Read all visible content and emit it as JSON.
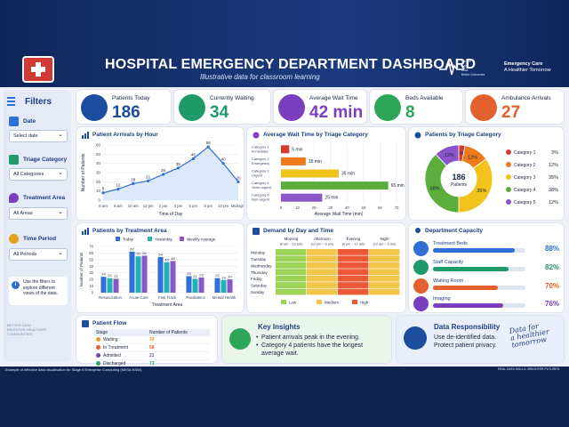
{
  "header": {
    "title": "HOSPITAL EMERGENCY DEPARTMENT DASHBOARD",
    "subtitle": "Illustrative data for classroom learning",
    "small_lines": [
      "People",
      "Care",
      "Data",
      "Better Outcomes"
    ],
    "right_title": "Emergency Care",
    "right_sub": "A Healthier Tomorrow"
  },
  "filters": {
    "title": "Filters",
    "date_label": "Date",
    "date_value": "Select date",
    "triage_label": "Triage Category",
    "triage_value": "All Categories",
    "area_label": "Treatment Area",
    "area_value": "All Areas",
    "period_label": "Time Period",
    "period_value": "All Periods",
    "note": "Use the filters to explore different views of the data.",
    "bottom_text": "BETTER DATA BRIGHTER HEALTHIER COMMUNITIES"
  },
  "kpis": [
    {
      "label": "Patients Today",
      "value": "186",
      "color": "#1d4d9e"
    },
    {
      "label": "Currently Waiting",
      "value": "34",
      "color": "#1f9a6b"
    },
    {
      "label": "Average Wait Time",
      "value": "42 min",
      "color": "#7a3fbf"
    },
    {
      "label": "Beds Available",
      "value": "8",
      "color": "#2da65a"
    },
    {
      "label": "Ambulance Arrivals",
      "value": "27",
      "color": "#e2612c"
    }
  ],
  "arrivals": {
    "title": "Patient Arrivals by Hour",
    "ylabel": "Number of Patients",
    "xlabel": "Time of Day",
    "yticks": [
      "0",
      "10",
      "20",
      "30",
      "40",
      "50",
      "60"
    ]
  },
  "wait": {
    "title": "Average Wait Time by Triage Category",
    "xlabel": "Average Wait Time (min)",
    "xticks": [
      "0",
      "10",
      "20",
      "30",
      "40",
      "50",
      "60",
      "70"
    ]
  },
  "triage_pie": {
    "title": "Patients by Triage Category",
    "center_value": "186",
    "center_label": "Patients"
  },
  "treatment": {
    "title": "Patients by Treatment Area",
    "ylabel": "Number of Patients",
    "xlabel": "Treatment Area",
    "yticks": [
      "0",
      "10",
      "20",
      "30",
      "40",
      "50",
      "60",
      "70"
    ]
  },
  "heatmap": {
    "title": "Demand by Day and Time",
    "legend": [
      "Low",
      "Medium",
      "High"
    ]
  },
  "capacity": {
    "title": "Department Capacity",
    "rows": [
      {
        "label": "Treatment Beds",
        "value": "88%",
        "frac": 0.88,
        "color": "#2f6fd4",
        "icon": "bed-icon"
      },
      {
        "label": "Staff Capacity",
        "value": "82%",
        "frac": 0.82,
        "color": "#1f9a6b",
        "icon": "staff-icon"
      },
      {
        "label": "Waiting Room",
        "value": "70%",
        "frac": 0.7,
        "color": "#e2612c",
        "icon": "chair-icon"
      },
      {
        "label": "Imaging",
        "value": "76%",
        "frac": 0.76,
        "color": "#7a3fbf",
        "icon": "imaging-icon"
      }
    ]
  },
  "flow": {
    "title": "Patient Flow",
    "headers": [
      "Stage",
      "Number of Patients"
    ],
    "rows": [
      {
        "stage": "Waiting",
        "value": "34",
        "color": "#e2a21c"
      },
      {
        "stage": "In Treatment",
        "value": "58",
        "color": "#e2612c"
      },
      {
        "stage": "Admitted",
        "value": "21",
        "color": "#7a3fbf"
      },
      {
        "stage": "Discharged",
        "value": "73",
        "color": "#2da65a"
      }
    ]
  },
  "insights": {
    "title": "Key Insights",
    "items": [
      "Patient arrivals peak in the evening.",
      "Category 4 patients have the longest average wait."
    ]
  },
  "responsibility": {
    "title": "Data Responsibility",
    "lines": [
      "Use de-identified data.",
      "Protect patient privacy."
    ],
    "script": [
      "Data for",
      "a healthier",
      "tomorrow"
    ]
  },
  "footer": {
    "left": "Example of effective data visualisation for Stage 6 Enterprise Computing (NESA NSW).",
    "right": "REAL DATA SKILLS. BRIGHTER FUTURES."
  },
  "chart_data": [
    {
      "type": "line",
      "title": "Patient Arrivals by Hour",
      "x": [
        "6 am",
        "8 am",
        "10 am",
        "12 pm",
        "2 pm",
        "4 pm",
        "6 pm",
        "8 pm",
        "10 pm",
        "Midnight"
      ],
      "values": [
        8,
        12,
        18,
        21,
        28,
        35,
        45,
        58,
        40,
        20
      ],
      "xlabel": "Time of Day",
      "ylabel": "Number of Patients",
      "ylim": [
        0,
        60
      ],
      "grid": true
    },
    {
      "type": "bar",
      "title": "Average Wait Time by Triage Category",
      "categories": [
        "Category 1 Immediate",
        "Category 2 Emergency",
        "Category 3 Urgent",
        "Category 4 Semi-urgent",
        "Category 5 Non-urgent"
      ],
      "values": [
        5,
        15,
        35,
        65,
        25
      ],
      "colors": [
        "#d63b2f",
        "#ef7a1a",
        "#f2c31c",
        "#5cae3c",
        "#8a55c8"
      ],
      "xlabel": "Average Wait Time (min)",
      "xlim": [
        0,
        70
      ]
    },
    {
      "type": "pie",
      "title": "Patients by Triage Category",
      "categories": [
        "Category 1",
        "Category 2",
        "Category 3",
        "Category 4",
        "Category 5"
      ],
      "values": [
        3,
        12,
        35,
        38,
        12
      ],
      "colors": [
        "#d63b2f",
        "#ef7a1a",
        "#f2c31c",
        "#5cae3c",
        "#8a55c8"
      ],
      "labels": [
        "3%",
        "12%",
        "35%",
        "38%",
        "12%"
      ]
    },
    {
      "type": "bar",
      "title": "Patients by Treatment Area",
      "categories": [
        "Resuscitation",
        "Acute Care",
        "Fast Track",
        "Paediatrics",
        "Mental Health"
      ],
      "series": [
        {
          "name": "Today",
          "values": [
            24,
            62,
            54,
            25,
            22
          ],
          "color": "#2f6fd4"
        },
        {
          "name": "Yesterday",
          "values": [
            22,
            55,
            46,
            21,
            19
          ],
          "color": "#1fb5a8"
        },
        {
          "name": "Weekly Average",
          "values": [
            21,
            56,
            48,
            23,
            20
          ],
          "color": "#8a55c8"
        }
      ],
      "xlabel": "Treatment Area",
      "ylabel": "Number of Patients",
      "ylim": [
        0,
        70
      ],
      "legend": "top"
    },
    {
      "type": "heatmap",
      "title": "Demand by Day and Time",
      "rows": [
        "Monday",
        "Tuesday",
        "Wednesday",
        "Thursday",
        "Friday",
        "Saturday",
        "Sunday"
      ],
      "columns": [
        "Morning (6 am – 12 pm)",
        "Afternoon (12 pm – 6 pm)",
        "Evening (6 pm – 12 am)",
        "Night (12 am – 6 am)"
      ],
      "levels": [
        [
          0,
          1,
          2,
          1
        ],
        [
          0,
          1,
          2,
          1
        ],
        [
          0,
          1,
          2,
          1
        ],
        [
          0,
          1,
          2,
          1
        ],
        [
          0,
          1,
          2,
          1
        ],
        [
          0,
          1,
          2,
          1
        ],
        [
          0,
          1,
          2,
          1
        ]
      ],
      "scale": [
        "Low",
        "Medium",
        "High"
      ],
      "colors": [
        "#9ed35a",
        "#f2c64a",
        "#ea5a3a"
      ]
    }
  ]
}
